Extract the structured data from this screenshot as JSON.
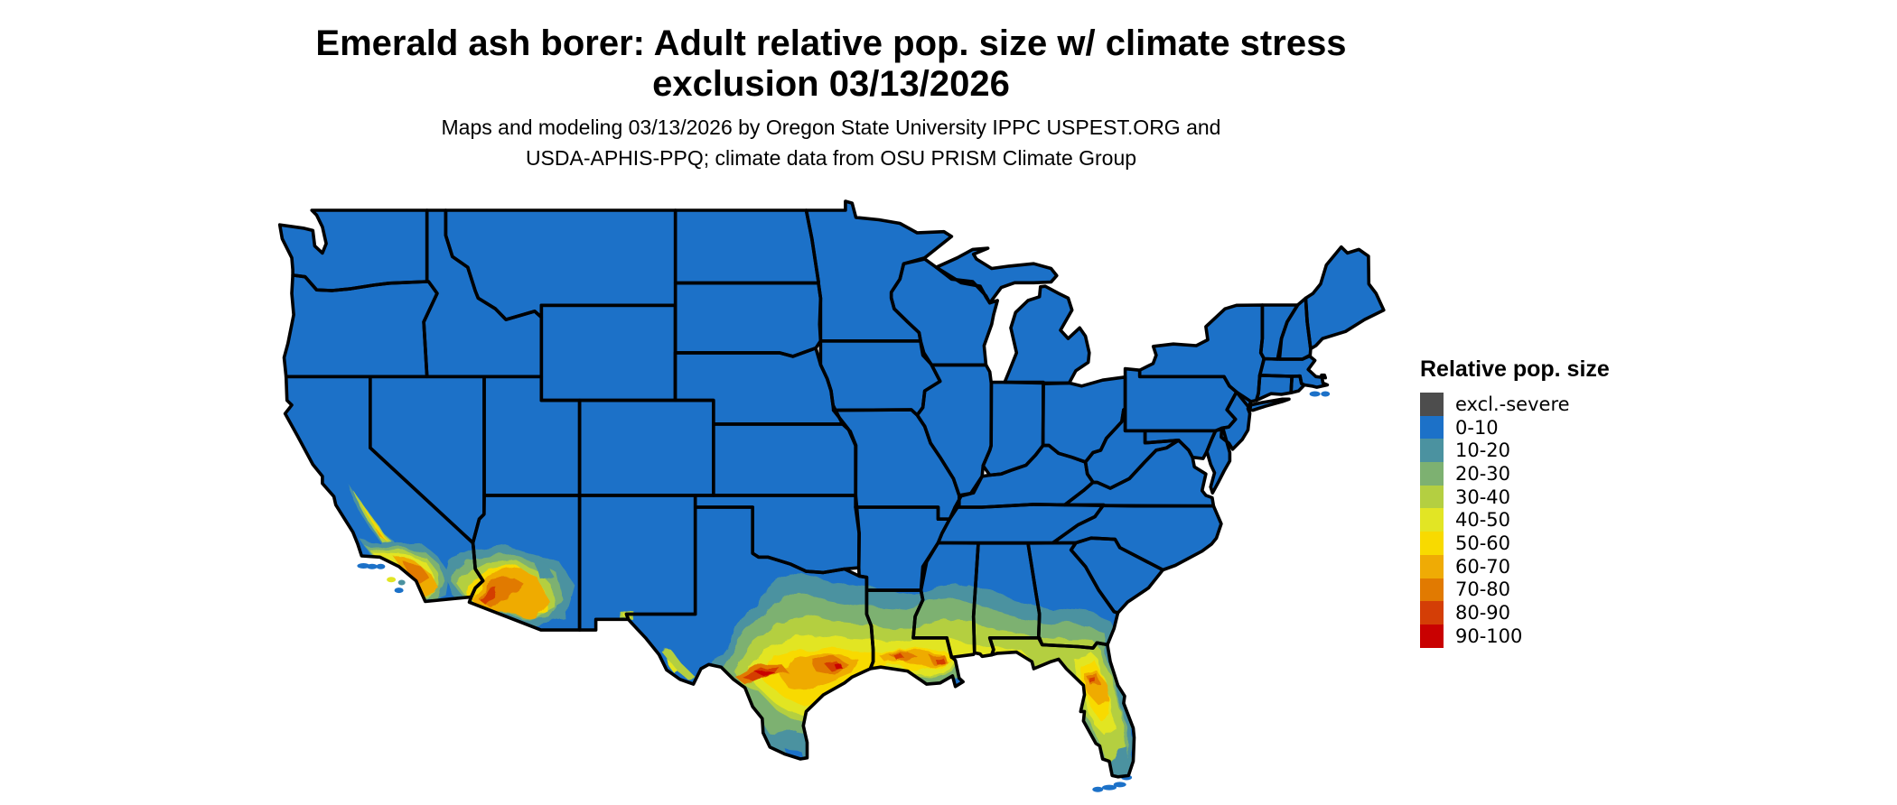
{
  "figure": {
    "title_line1": "Emerald ash borer: Adult relative pop. size w/ climate stress",
    "title_line2": "exclusion 03/13/2026",
    "subtitle_line1": "Maps and modeling 03/13/2026 by Oregon State University IPPC USPEST.ORG and",
    "subtitle_line2": "USDA-APHIS-PPQ; climate data from OSU PRISM Climate Group"
  },
  "legend": {
    "title": "Relative pop. size",
    "items": [
      {
        "label": "excl.-severe",
        "color": "#4d4d4d"
      },
      {
        "label": "0-10",
        "color": "#1c71c8"
      },
      {
        "label": "10-20",
        "color": "#4b92a0"
      },
      {
        "label": "20-30",
        "color": "#7db171"
      },
      {
        "label": "30-40",
        "color": "#b4cf41"
      },
      {
        "label": "40-50",
        "color": "#e2e524"
      },
      {
        "label": "50-60",
        "color": "#f8da00"
      },
      {
        "label": "60-70",
        "color": "#efab05"
      },
      {
        "label": "70-80",
        "color": "#e17a01"
      },
      {
        "label": "80-90",
        "color": "#d43e06"
      },
      {
        "label": "90-100",
        "color": "#c90101"
      }
    ]
  },
  "map": {
    "region": "Continental United States",
    "border_color": "#000000",
    "background": "#ffffff"
  }
}
